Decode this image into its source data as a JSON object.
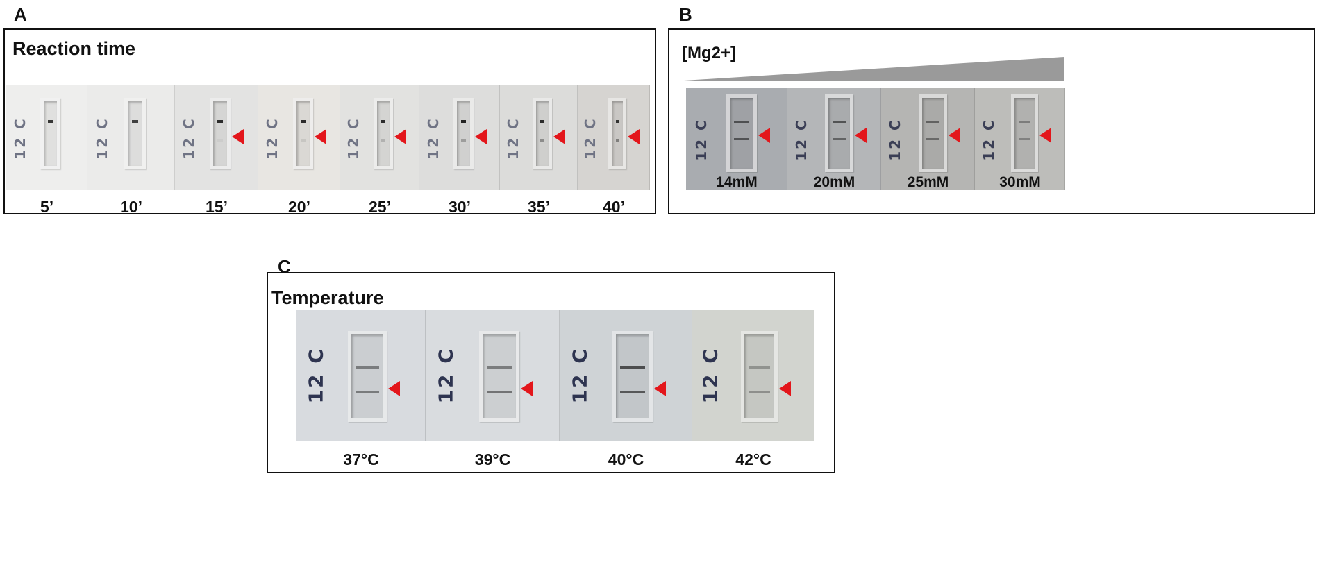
{
  "panel_a": {
    "letter": "A",
    "title": "Reaction time",
    "strip_label": "12 C",
    "strips": [
      {
        "caption": "5’",
        "marked": false,
        "control": 0.85,
        "test": 0.0
      },
      {
        "caption": "10’",
        "marked": false,
        "control": 0.8,
        "test": 0.0
      },
      {
        "caption": "15’",
        "marked": true,
        "control": 0.9,
        "test": 0.05
      },
      {
        "caption": "20’",
        "marked": true,
        "control": 0.9,
        "test": 0.1
      },
      {
        "caption": "25’",
        "marked": true,
        "control": 0.9,
        "test": 0.2
      },
      {
        "caption": "30’",
        "marked": true,
        "control": 0.95,
        "test": 0.3
      },
      {
        "caption": "35’",
        "marked": true,
        "control": 0.9,
        "test": 0.4
      },
      {
        "caption": "40’",
        "marked": true,
        "control": 0.85,
        "test": 0.45
      }
    ],
    "colors": {
      "label": "#6f7384",
      "arrow": "#e3161b"
    }
  },
  "panel_b": {
    "letter": "B",
    "title": "[Mg2+]",
    "strip_label": "12 C",
    "strips": [
      {
        "caption": "14mM",
        "marked": true,
        "control": 0.6,
        "test": 0.65
      },
      {
        "caption": "20mM",
        "marked": true,
        "control": 0.6,
        "test": 0.55
      },
      {
        "caption": "25mM",
        "marked": true,
        "control": 0.5,
        "test": 0.5
      },
      {
        "caption": "30mM",
        "marked": true,
        "control": 0.35,
        "test": 0.35
      }
    ],
    "colors": {
      "gradient": "#9a9a9a",
      "arrow": "#e3161b",
      "label": "#3a3e55"
    }
  },
  "panel_c": {
    "letter": "C",
    "title": "Temperature",
    "strip_label": "12 C",
    "strips": [
      {
        "caption": "37°C",
        "marked": true,
        "control": 0.45,
        "test": 0.5
      },
      {
        "caption": "39°C",
        "marked": true,
        "control": 0.45,
        "test": 0.55
      },
      {
        "caption": "40°C",
        "marked": true,
        "control": 0.7,
        "test": 0.7
      },
      {
        "caption": "42°C",
        "marked": true,
        "control": 0.3,
        "test": 0.35
      }
    ],
    "colors": {
      "label": "#2e3450",
      "arrow": "#e3161b"
    }
  }
}
